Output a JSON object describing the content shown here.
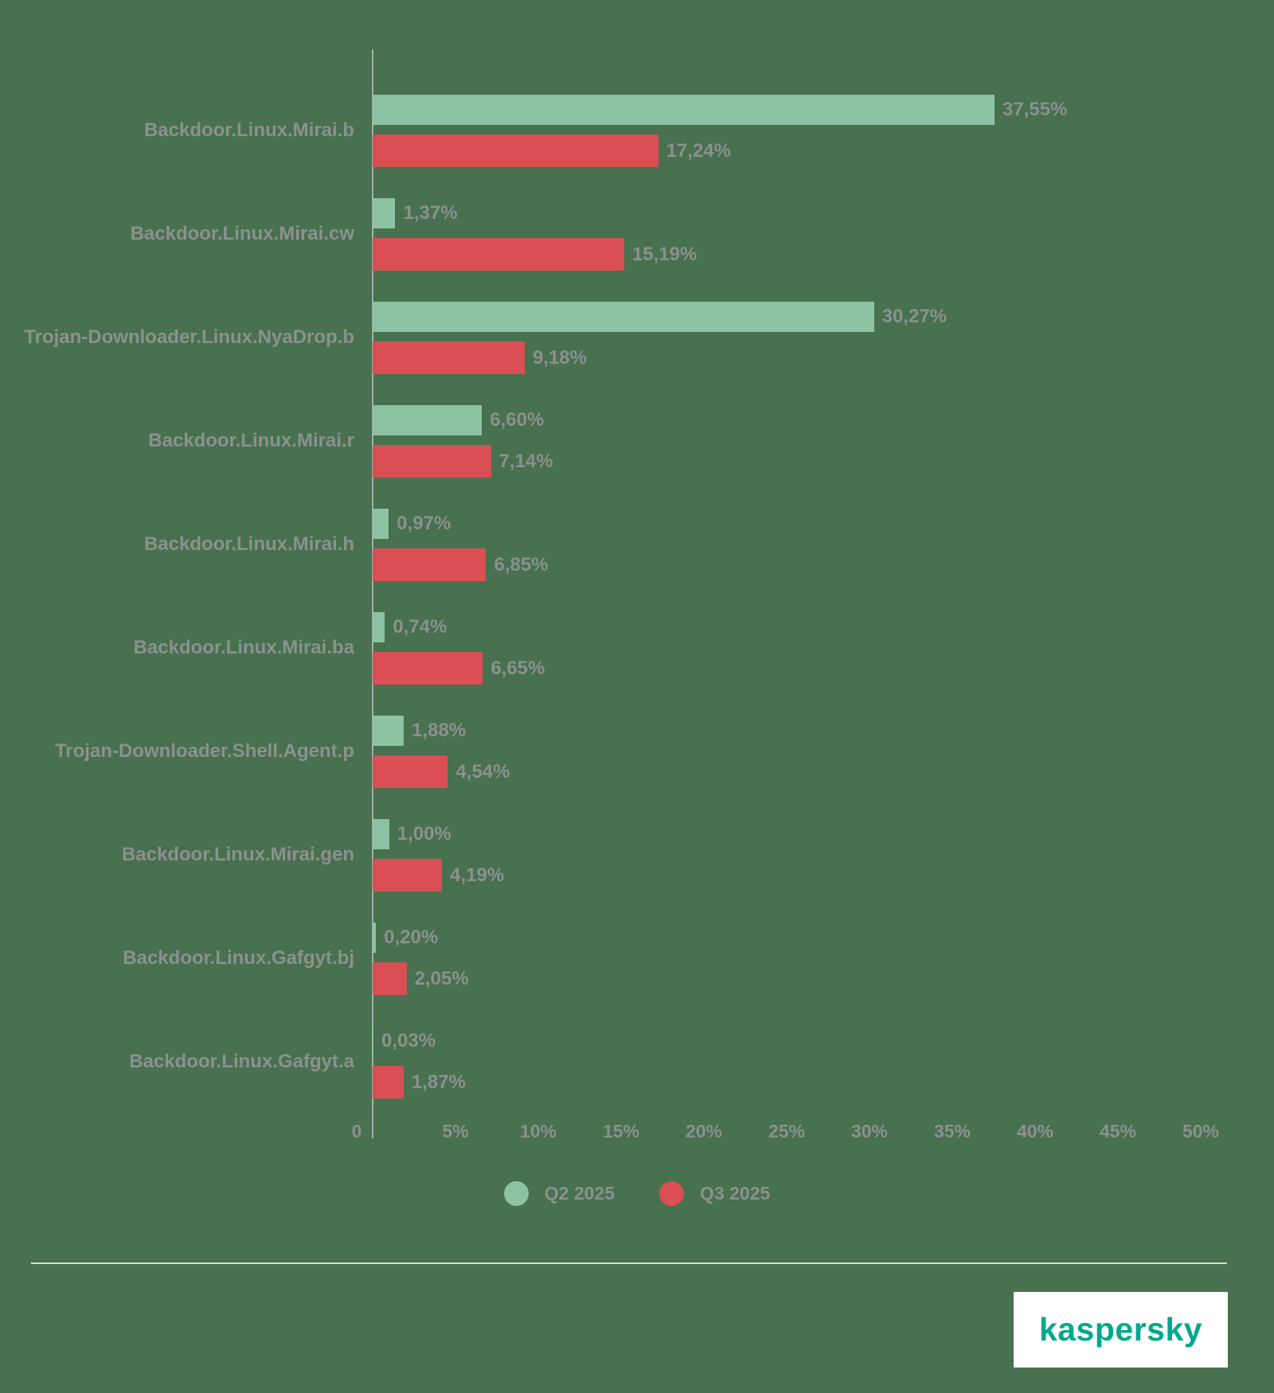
{
  "chart_data": {
    "type": "bar",
    "orientation": "horizontal",
    "title": "",
    "xlabel": "",
    "ylabel": "",
    "xlim": [
      0,
      50
    ],
    "grid": false,
    "legend_position": "bottom",
    "x_ticks": [
      {
        "value": 0,
        "label": "0"
      },
      {
        "value": 5,
        "label": "5%"
      },
      {
        "value": 10,
        "label": "10%"
      },
      {
        "value": 15,
        "label": "15%"
      },
      {
        "value": 20,
        "label": "20%"
      },
      {
        "value": 25,
        "label": "25%"
      },
      {
        "value": 30,
        "label": "30%"
      },
      {
        "value": 35,
        "label": "35%"
      },
      {
        "value": 40,
        "label": "40%"
      },
      {
        "value": 45,
        "label": "45%"
      },
      {
        "value": 50,
        "label": "50%"
      }
    ],
    "categories": [
      "Backdoor.Linux.Mirai.b",
      "Backdoor.Linux.Mirai.cw",
      "Trojan-Downloader.Linux.NyaDrop.b",
      "Backdoor.Linux.Mirai.r",
      "Backdoor.Linux.Mirai.h",
      "Backdoor.Linux.Mirai.ba",
      "Trojan-Downloader.Shell.Agent.p",
      "Backdoor.Linux.Mirai.gen",
      "Backdoor.Linux.Gafgyt.bj",
      "Backdoor.Linux.Gafgyt.a"
    ],
    "series": [
      {
        "name": "Q2 2025",
        "color": "#8DC3A4",
        "values": [
          37.55,
          1.37,
          30.27,
          6.6,
          0.97,
          0.74,
          1.88,
          1.0,
          0.2,
          0.03
        ],
        "value_labels": [
          "37,55%",
          "1,37%",
          "30,27%",
          "6,60%",
          "0,97%",
          "0,74%",
          "1,88%",
          "1,00%",
          "0,20%",
          "0,03%"
        ]
      },
      {
        "name": "Q3 2025",
        "color": "#D94F54",
        "values": [
          17.24,
          15.19,
          9.18,
          7.14,
          6.85,
          6.65,
          4.54,
          4.19,
          2.05,
          1.87
        ],
        "value_labels": [
          "17,24%",
          "15,19%",
          "9,18%",
          "7,14%",
          "6,85%",
          "6,65%",
          "4,54%",
          "4,19%",
          "2,05%",
          "1,87%"
        ]
      }
    ]
  },
  "legend": {
    "items": [
      {
        "label": "Q2 2025",
        "color": "#8DC3A4"
      },
      {
        "label": "Q3 2025",
        "color": "#D94F54"
      }
    ]
  },
  "branding": {
    "logo_text": "kaspersky",
    "logo_color": "#00A88E"
  },
  "colors": {
    "background": "#47714F",
    "q2_bar": "#8DC3A4",
    "q3_bar": "#D94F54",
    "text_gray": "#8D9090",
    "axis_line": "#A6ACA6",
    "separator": "#D8DAD8",
    "logo_background": "#FFFFFF"
  }
}
